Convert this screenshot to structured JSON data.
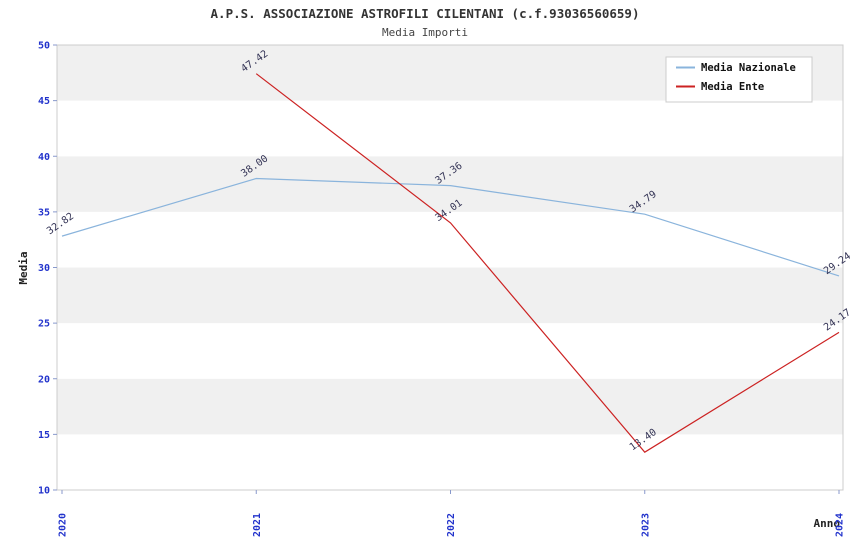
{
  "title": "A.P.S. ASSOCIAZIONE ASTROFILI CILENTANI (c.f.93036560659)",
  "subtitle": "Media Importi",
  "chart_data": {
    "type": "line",
    "x": [
      "2020",
      "2021",
      "2022",
      "2023",
      "2024"
    ],
    "series": [
      {
        "name": "Media Nazionale",
        "color": "#8ab4dc",
        "values": [
          32.82,
          38.0,
          37.36,
          34.79,
          29.24
        ]
      },
      {
        "name": "Media Ente",
        "color": "#cc2222",
        "values": [
          null,
          47.42,
          34.01,
          13.4,
          24.17
        ]
      }
    ],
    "title": "A.P.S. ASSOCIAZIONE ASTROFILI CILENTANI (c.f.93036560659)",
    "subtitle": "Media Importi",
    "xlabel": "Anno",
    "ylabel": "Media",
    "ylim": [
      10,
      50
    ],
    "yticks": [
      10,
      15,
      20,
      25,
      30,
      35,
      40,
      45,
      50
    ],
    "grid": "banded-horizontal",
    "band_color": "#f0f0f0",
    "legend_position": "top-right",
    "tick_label_color": "#2233cc",
    "point_label_color": "#333355"
  }
}
